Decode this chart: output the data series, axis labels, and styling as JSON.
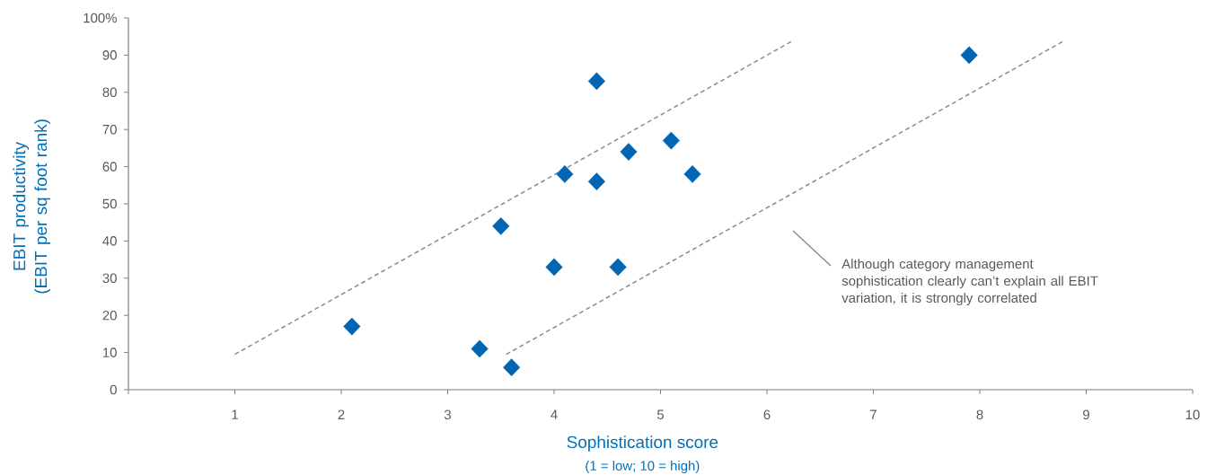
{
  "chart_data": {
    "type": "scatter",
    "xlabel": "Sophistication score",
    "ylabel": "EBIT productivity (EBIT per sq foot rank)",
    "xlim": [
      0,
      10
    ],
    "ylim": [
      0,
      100
    ],
    "xticks": [
      {
        "value": 0,
        "label": null
      },
      1,
      2,
      3,
      4,
      5,
      6,
      7,
      8,
      9,
      10
    ],
    "yticks": [
      0,
      10,
      20,
      30,
      40,
      50,
      60,
      70,
      80,
      90,
      {
        "value": 100,
        "label": "100%"
      }
    ],
    "marker": "diamond",
    "series": [
      {
        "color": "#0066b3",
        "x": [
          2.1,
          3.3,
          3.6,
          3.5,
          4.0,
          4.1,
          4.4,
          4.4,
          4.6,
          4.7,
          5.1,
          5.3,
          7.9
        ],
        "values": [
          17,
          11,
          6,
          44,
          33,
          58,
          83,
          56,
          33,
          64,
          67,
          58,
          90
        ]
      },
      {
        "type": "line",
        "color": "#8c8c8c",
        "line_style": "dashed",
        "marker": "none",
        "x": [
          1,
          6.25
        ],
        "values": [
          9.5,
          94
        ]
      },
      {
        "type": "line",
        "color": "#8c8c8c",
        "line_style": "dashed",
        "marker": "none",
        "x": [
          3.55,
          8.8
        ],
        "values": [
          9.5,
          94
        ]
      }
    ],
    "annotations": [
      "Although category management sophistication clearly can’t explain all EBIT variation, it is strongly correlated",
      "(1 = low; 10 = high)"
    ]
  }
}
